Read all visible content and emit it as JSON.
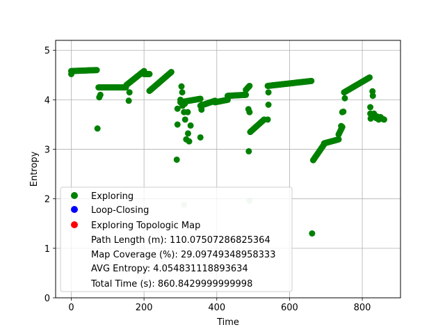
{
  "chart_data": {
    "type": "scatter",
    "xlabel": "Time",
    "ylabel": "Entropy",
    "xlim": [
      -43,
      905
    ],
    "ylim": [
      0,
      5.2
    ],
    "xticks": [
      0,
      200,
      400,
      600,
      800
    ],
    "yticks": [
      0,
      1,
      2,
      3,
      4,
      5
    ],
    "grid": true,
    "legend_position": "lower-left",
    "legend": {
      "entries": [
        {
          "label": "Exploring",
          "color": "#008000"
        },
        {
          "label": "Loop-Closing",
          "color": "#0000ff"
        },
        {
          "label": "Exploring Topologic Map",
          "color": "#ff0000"
        }
      ],
      "stats": [
        "Path Length (m): 110.07507286825364",
        "Map Coverage (%): 29.09749348958333",
        "AVG Entropy: 4.054831118893634",
        "Total Time (s): 860.8429999999998"
      ]
    },
    "series": [
      {
        "name": "Exploring",
        "color": "#008000",
        "segments": [
          {
            "x0": 0,
            "x1": 70,
            "y0": 4.58,
            "y1": 4.6
          },
          {
            "x0": 75,
            "x1": 150,
            "y0": 4.25,
            "y1": 4.25
          },
          {
            "x0": 152,
            "x1": 200,
            "y0": 4.3,
            "y1": 4.58
          },
          {
            "x0": 200,
            "x1": 215,
            "y0": 4.52,
            "y1": 4.52
          },
          {
            "x0": 215,
            "x1": 275,
            "y0": 4.18,
            "y1": 4.56
          },
          {
            "x0": 300,
            "x1": 355,
            "y0": 3.95,
            "y1": 4.02
          },
          {
            "x0": 355,
            "x1": 395,
            "y0": 3.88,
            "y1": 3.98
          },
          {
            "x0": 395,
            "x1": 430,
            "y0": 3.95,
            "y1": 4.0
          },
          {
            "x0": 430,
            "x1": 480,
            "y0": 4.08,
            "y1": 4.1
          },
          {
            "x0": 480,
            "x1": 490,
            "y0": 4.2,
            "y1": 4.28
          },
          {
            "x0": 492,
            "x1": 530,
            "y0": 3.35,
            "y1": 3.6
          },
          {
            "x0": 540,
            "x1": 660,
            "y0": 4.28,
            "y1": 4.38
          },
          {
            "x0": 665,
            "x1": 695,
            "y0": 2.78,
            "y1": 3.1
          },
          {
            "x0": 695,
            "x1": 735,
            "y0": 3.12,
            "y1": 3.2
          },
          {
            "x0": 735,
            "x1": 745,
            "y0": 3.3,
            "y1": 3.45
          },
          {
            "x0": 750,
            "x1": 820,
            "y0": 4.15,
            "y1": 4.45
          },
          {
            "x0": 822,
            "x1": 860,
            "y0": 3.72,
            "y1": 3.6
          }
        ],
        "points": [
          [
            0,
            4.52
          ],
          [
            72,
            3.42
          ],
          [
            77,
            4.05
          ],
          [
            80,
            4.1
          ],
          [
            158,
            3.98
          ],
          [
            160,
            4.15
          ],
          [
            290,
            2.79
          ],
          [
            292,
            3.5
          ],
          [
            292,
            3.82
          ],
          [
            300,
            4.0
          ],
          [
            303,
            4.27
          ],
          [
            305,
            4.15
          ],
          [
            306,
            3.88
          ],
          [
            310,
            3.75
          ],
          [
            312,
            3.92
          ],
          [
            313,
            3.6
          ],
          [
            316,
            3.2
          ],
          [
            320,
            3.75
          ],
          [
            321,
            3.32
          ],
          [
            324,
            3.16
          ],
          [
            328,
            3.48
          ],
          [
            355,
            3.24
          ],
          [
            358,
            3.8
          ],
          [
            359,
            3.9
          ],
          [
            487,
            3.81
          ],
          [
            488,
            2.96
          ],
          [
            490,
            3.75
          ],
          [
            542,
            3.9
          ],
          [
            542,
            4.15
          ],
          [
            540,
            3.6
          ],
          [
            662,
            1.3
          ],
          [
            742,
            3.47
          ],
          [
            745,
            3.75
          ],
          [
            748,
            3.76
          ],
          [
            752,
            4.03
          ],
          [
            822,
            3.85
          ],
          [
            823,
            3.62
          ],
          [
            828,
            4.17
          ],
          [
            829,
            4.08
          ],
          [
            832,
            3.72
          ],
          [
            838,
            3.63
          ],
          [
            845,
            3.6
          ],
          [
            850,
            3.65
          ]
        ]
      }
    ],
    "faint_points": [
      [
        310,
        1.88
      ],
      [
        490,
        1.96
      ]
    ]
  }
}
